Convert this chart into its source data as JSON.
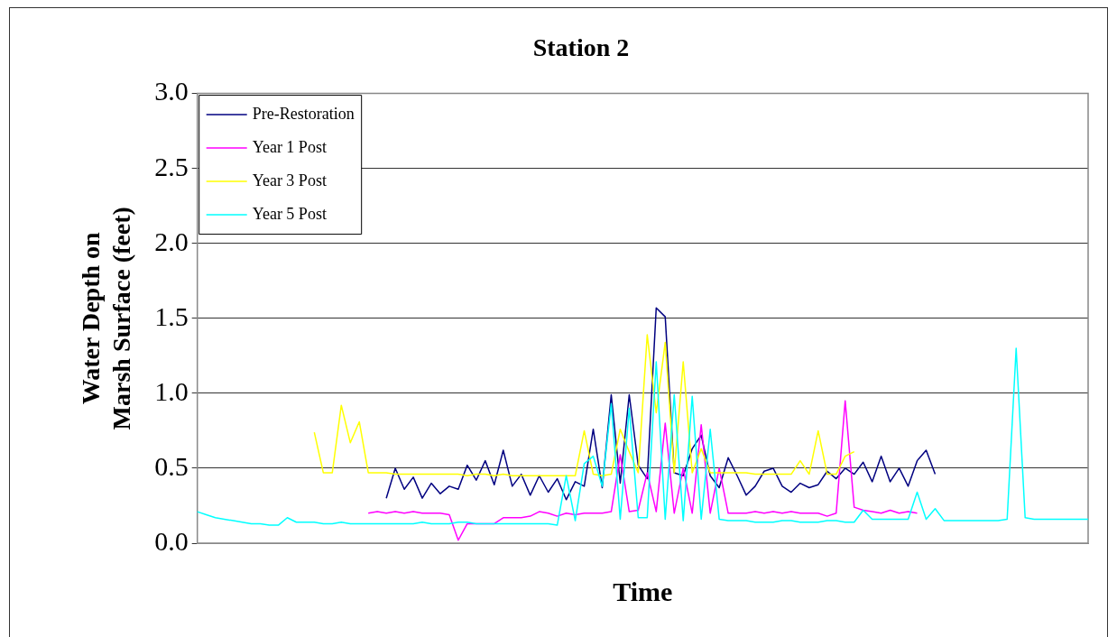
{
  "chart_data": {
    "type": "line",
    "title": "Station 2",
    "xlabel": "Time",
    "ylabel": "Water Depth on Marsh Surface (feet)",
    "categories": [
      null,
      null,
      null,
      null,
      null,
      null,
      null,
      null,
      null,
      null,
      null,
      null,
      null,
      null,
      null,
      null,
      null,
      null,
      null,
      null,
      null,
      null,
      null,
      null,
      null,
      null,
      null,
      null,
      null,
      null,
      null,
      null,
      null,
      null,
      null,
      null,
      null,
      null,
      null,
      null,
      null,
      null,
      null,
      null,
      null,
      null,
      null,
      null,
      null,
      null,
      null,
      null,
      null,
      null,
      null,
      null,
      null,
      null,
      null,
      null,
      null,
      null,
      null,
      null,
      null,
      null,
      null,
      null,
      null,
      null,
      null,
      null,
      null,
      null,
      null,
      null,
      null,
      null,
      null,
      null,
      null,
      null,
      null,
      null,
      null,
      null,
      null,
      null,
      null,
      null,
      null,
      null,
      null,
      null,
      null,
      null,
      null,
      null,
      null,
      null
    ],
    "series": [
      {
        "name": "Pre-Restoration",
        "color": "#000080",
        "values": [
          null,
          null,
          null,
          null,
          null,
          null,
          null,
          null,
          null,
          null,
          null,
          null,
          null,
          null,
          null,
          null,
          null,
          null,
          null,
          null,
          null,
          0.3,
          0.5,
          0.36,
          0.44,
          0.3,
          0.4,
          0.33,
          0.38,
          0.36,
          0.52,
          0.42,
          0.55,
          0.39,
          0.62,
          0.38,
          0.46,
          0.32,
          0.45,
          0.34,
          0.43,
          0.29,
          0.41,
          0.38,
          0.76,
          0.37,
          0.99,
          0.4,
          0.99,
          0.52,
          0.43,
          1.57,
          1.51,
          0.47,
          0.45,
          0.63,
          0.72,
          0.45,
          0.37,
          0.57,
          0.45,
          0.32,
          0.38,
          0.48,
          0.5,
          0.38,
          0.34,
          0.4,
          0.37,
          0.39,
          0.48,
          0.43,
          0.5,
          0.46,
          0.54,
          0.41,
          0.58,
          0.41,
          0.5,
          0.38,
          0.55,
          0.62,
          0.46,
          null,
          null,
          null,
          null,
          null,
          null,
          null,
          null,
          null,
          null,
          null,
          null,
          null,
          null,
          null,
          null,
          null
        ]
      },
      {
        "name": "Year 1 Post",
        "color": "#ff00ff",
        "values": [
          null,
          null,
          null,
          null,
          null,
          null,
          null,
          null,
          null,
          null,
          null,
          null,
          null,
          null,
          null,
          null,
          null,
          null,
          null,
          0.2,
          0.21,
          0.2,
          0.21,
          0.2,
          0.21,
          0.2,
          0.2,
          0.2,
          0.19,
          0.02,
          0.13,
          0.13,
          0.13,
          0.13,
          0.17,
          0.17,
          0.17,
          0.18,
          0.21,
          0.2,
          0.18,
          0.2,
          0.19,
          0.2,
          0.2,
          0.2,
          0.21,
          0.59,
          0.21,
          0.22,
          0.47,
          0.21,
          0.8,
          0.2,
          0.5,
          0.2,
          0.79,
          0.2,
          0.5,
          0.2,
          0.2,
          0.2,
          0.21,
          0.2,
          0.21,
          0.2,
          0.21,
          0.2,
          0.2,
          0.2,
          0.18,
          0.2,
          0.95,
          0.24,
          0.22,
          0.21,
          0.2,
          0.22,
          0.2,
          0.21,
          0.2,
          null,
          null,
          null,
          null,
          null,
          null,
          null,
          null,
          null,
          null,
          null,
          null,
          null,
          null,
          null,
          null,
          null,
          null,
          null
        ]
      },
      {
        "name": "Year 3 Post",
        "color": "#ffff00",
        "values": [
          null,
          null,
          null,
          null,
          null,
          null,
          null,
          null,
          null,
          null,
          null,
          null,
          null,
          0.74,
          0.47,
          0.47,
          0.92,
          0.67,
          0.81,
          0.47,
          0.47,
          0.47,
          0.46,
          0.46,
          0.46,
          0.46,
          0.46,
          0.46,
          0.46,
          0.46,
          0.45,
          0.46,
          0.46,
          0.45,
          0.46,
          0.45,
          0.45,
          0.45,
          0.45,
          0.45,
          0.45,
          0.45,
          0.45,
          0.75,
          0.46,
          0.45,
          0.46,
          0.76,
          0.61,
          0.47,
          1.39,
          0.87,
          1.34,
          0.47,
          1.21,
          0.47,
          0.63,
          0.47,
          0.47,
          0.47,
          0.47,
          0.47,
          0.46,
          0.46,
          0.46,
          0.46,
          0.46,
          0.55,
          0.46,
          0.75,
          0.46,
          0.46,
          0.58,
          0.61,
          null,
          null,
          null,
          null,
          null,
          null,
          null,
          null,
          null,
          null,
          null,
          null,
          null,
          null,
          null,
          null,
          null,
          null,
          null,
          null,
          null,
          null,
          null,
          null,
          null,
          null
        ]
      },
      {
        "name": "Year 5 Post",
        "color": "#00ffff",
        "values": [
          0.21,
          0.19,
          0.17,
          0.16,
          0.15,
          0.14,
          0.13,
          0.13,
          0.12,
          0.12,
          0.17,
          0.14,
          0.14,
          0.14,
          0.13,
          0.13,
          0.14,
          0.13,
          0.13,
          0.13,
          0.13,
          0.13,
          0.13,
          0.13,
          0.13,
          0.14,
          0.13,
          0.13,
          0.13,
          0.14,
          0.14,
          0.13,
          0.13,
          0.13,
          0.13,
          0.13,
          0.13,
          0.13,
          0.13,
          0.13,
          0.12,
          0.45,
          0.15,
          0.53,
          0.58,
          0.38,
          0.93,
          0.16,
          0.9,
          0.17,
          0.17,
          1.21,
          0.16,
          0.99,
          0.15,
          0.98,
          0.16,
          0.76,
          0.16,
          0.15,
          0.15,
          0.15,
          0.14,
          0.14,
          0.14,
          0.15,
          0.15,
          0.14,
          0.14,
          0.14,
          0.15,
          0.15,
          0.14,
          0.14,
          0.22,
          0.16,
          0.16,
          0.16,
          0.16,
          0.16,
          0.34,
          0.16,
          0.23,
          0.15,
          0.15,
          0.15,
          0.15,
          0.15,
          0.15,
          0.15,
          0.16,
          1.3,
          0.17,
          0.16,
          0.16,
          0.16,
          0.16,
          0.16,
          0.16,
          0.16
        ]
      }
    ],
    "ylim": [
      0,
      3
    ],
    "yticks": [
      {
        "value": 0,
        "label": "0.0"
      },
      {
        "value": 0.5,
        "label": "0.5"
      },
      {
        "value": 1,
        "label": "1.0"
      },
      {
        "value": 1.5,
        "label": "1.5"
      },
      {
        "value": 2,
        "label": "2.0"
      },
      {
        "value": 2.5,
        "label": "2.5"
      },
      {
        "value": 3,
        "label": "3.0"
      }
    ],
    "tick_labels": "y",
    "grid": "y",
    "legend": "top left",
    "marker": "none",
    "line_style": "solid"
  }
}
